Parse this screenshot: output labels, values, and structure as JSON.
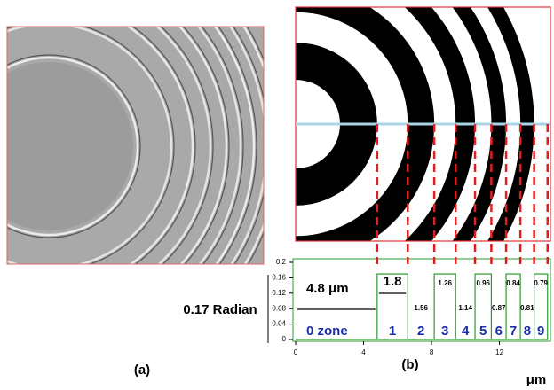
{
  "panels": {
    "a": {
      "label": "(a)"
    },
    "b": {
      "label": "(b)"
    }
  },
  "profile": {
    "type": "step",
    "step_height": {
      "value": 0.17,
      "label": "0.17 Radian"
    },
    "zone_widths": [
      {
        "value": 4.8,
        "label": "4.8 μm"
      },
      1.8,
      1.56,
      1.26,
      1.14,
      0.96,
      0.87,
      0.84,
      0.81,
      0.79
    ],
    "zone_labels": [
      "0 zone",
      "1",
      "2",
      "3",
      "4",
      "5",
      "6",
      "7",
      "8",
      "9"
    ],
    "xlim": [
      0,
      15
    ],
    "xticks": [
      0,
      4,
      8,
      12
    ],
    "x_unit": "μm",
    "ylim": [
      0,
      0.2
    ],
    "yticks": [
      0,
      0.04,
      0.08,
      0.12,
      0.16,
      0.2
    ],
    "color": "#2e9a2e"
  }
}
